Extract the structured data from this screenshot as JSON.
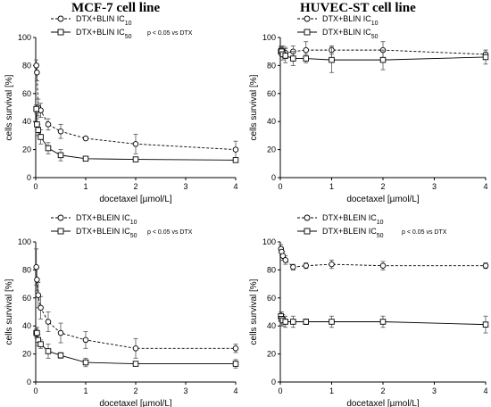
{
  "figure": {
    "column_titles": [
      "MCF-7 cell line",
      "HUVEC-ST cell line"
    ]
  },
  "chart_data": [
    {
      "type": "line",
      "panel": "top-left",
      "xlabel": "docetaxel [µmol/L]",
      "ylabel": "cells survival [%]",
      "xlim": [
        0,
        4
      ],
      "ylim": [
        0,
        100
      ],
      "xticks": [
        0,
        1,
        2,
        3,
        4
      ],
      "yticks": [
        0,
        20,
        40,
        60,
        80,
        100
      ],
      "annotation": "p < 0.05 vs DTX",
      "legend_placement": "top",
      "series": [
        {
          "name": "DTX+BLIN IC10",
          "marker": "circle",
          "line": "dashed",
          "x": [
            0.0125,
            0.025,
            0.05,
            0.1,
            0.25,
            0.5,
            1,
            2,
            4
          ],
          "y": [
            80,
            75,
            50,
            48,
            38,
            33,
            28,
            24,
            20
          ],
          "err": [
            4,
            6,
            6,
            5,
            4,
            5,
            1,
            7,
            6
          ]
        },
        {
          "name": "DTX+BLIN IC50",
          "marker": "square",
          "line": "solid",
          "x": [
            0.0125,
            0.025,
            0.05,
            0.1,
            0.25,
            0.5,
            1,
            2,
            4
          ],
          "y": [
            49,
            38,
            34,
            29,
            21,
            16,
            13.5,
            13,
            12.5
          ],
          "err": [
            3,
            4,
            4,
            5,
            4,
            4,
            1,
            1,
            1
          ]
        }
      ]
    },
    {
      "type": "line",
      "panel": "top-right",
      "xlabel": "docetaxel [µmol/L]",
      "ylabel": "cells survival [%]",
      "xlim": [
        0,
        4
      ],
      "ylim": [
        0,
        100
      ],
      "xticks": [
        0,
        1,
        2,
        3,
        4
      ],
      "yticks": [
        0,
        20,
        40,
        60,
        80,
        100
      ],
      "annotation": "",
      "legend_placement": "top",
      "series": [
        {
          "name": "DTX+BLIN IC10",
          "marker": "circle",
          "line": "dashed",
          "x": [
            0.0125,
            0.025,
            0.05,
            0.1,
            0.25,
            0.5,
            1,
            2,
            4
          ],
          "y": [
            91,
            91,
            90,
            89,
            90,
            91,
            91,
            91,
            88
          ],
          "err": [
            3,
            3,
            4,
            4,
            4,
            6,
            3,
            6,
            3
          ]
        },
        {
          "name": "DTX+BLIN IC50",
          "marker": "square",
          "line": "solid",
          "x": [
            0.0125,
            0.025,
            0.05,
            0.1,
            0.25,
            0.5,
            1,
            2,
            4
          ],
          "y": [
            90,
            90,
            88,
            87,
            85,
            85,
            84,
            84,
            86
          ],
          "err": [
            3,
            3,
            4,
            5,
            5,
            3,
            9,
            7,
            5
          ]
        }
      ]
    },
    {
      "type": "line",
      "panel": "bottom-left",
      "xlabel": "docetaxel [µmol/L]",
      "ylabel": "cells survival [%]",
      "xlim": [
        0,
        4
      ],
      "ylim": [
        0,
        100
      ],
      "xticks": [
        0,
        1,
        2,
        3,
        4
      ],
      "yticks": [
        0,
        20,
        40,
        60,
        80,
        100
      ],
      "annotation": "p < 0.05 vs DTX",
      "legend_placement": "top",
      "series": [
        {
          "name": "DTX+BLEIN IC10",
          "marker": "circle",
          "line": "dashed",
          "x": [
            0.0125,
            0.025,
            0.05,
            0.1,
            0.25,
            0.5,
            1,
            2,
            4
          ],
          "y": [
            82,
            73,
            62,
            53,
            43,
            35,
            30,
            24,
            24
          ],
          "err": [
            13,
            8,
            9,
            8,
            7,
            7,
            6,
            7,
            3
          ]
        },
        {
          "name": "DTX+BLEIN IC50",
          "marker": "square",
          "line": "solid",
          "x": [
            0.0125,
            0.025,
            0.05,
            0.1,
            0.25,
            0.5,
            1,
            2,
            4
          ],
          "y": [
            35,
            35,
            30,
            27,
            22,
            19,
            14,
            13,
            13
          ],
          "err": [
            3,
            4,
            4,
            3,
            5,
            2,
            3,
            1,
            3
          ]
        }
      ]
    },
    {
      "type": "line",
      "panel": "bottom-right",
      "xlabel": "docetaxel [µmol/L]",
      "ylabel": "cells survival [%]",
      "xlim": [
        0,
        4
      ],
      "ylim": [
        0,
        100
      ],
      "xticks": [
        0,
        1,
        2,
        3,
        4
      ],
      "yticks": [
        0,
        20,
        40,
        60,
        80,
        100
      ],
      "annotation": "p < 0.05 vs DTX",
      "legend_placement": "top",
      "series": [
        {
          "name": "DTX+BLEIN IC10",
          "marker": "circle",
          "line": "dashed",
          "x": [
            0.0125,
            0.025,
            0.05,
            0.1,
            0.25,
            0.5,
            1,
            2,
            4
          ],
          "y": [
            95,
            93,
            90,
            87,
            82,
            83,
            84,
            83,
            83
          ],
          "err": [
            3,
            3,
            3,
            3,
            2,
            2,
            3,
            3,
            2
          ]
        },
        {
          "name": "DTX+BLEIN IC50",
          "marker": "square",
          "line": "solid",
          "x": [
            0.0125,
            0.025,
            0.05,
            0.1,
            0.25,
            0.5,
            1,
            2,
            4
          ],
          "y": [
            47,
            45,
            44,
            43,
            43,
            43,
            43,
            43,
            41
          ],
          "err": [
            3,
            5,
            4,
            4,
            4,
            2,
            4,
            4,
            6
          ]
        }
      ]
    }
  ]
}
